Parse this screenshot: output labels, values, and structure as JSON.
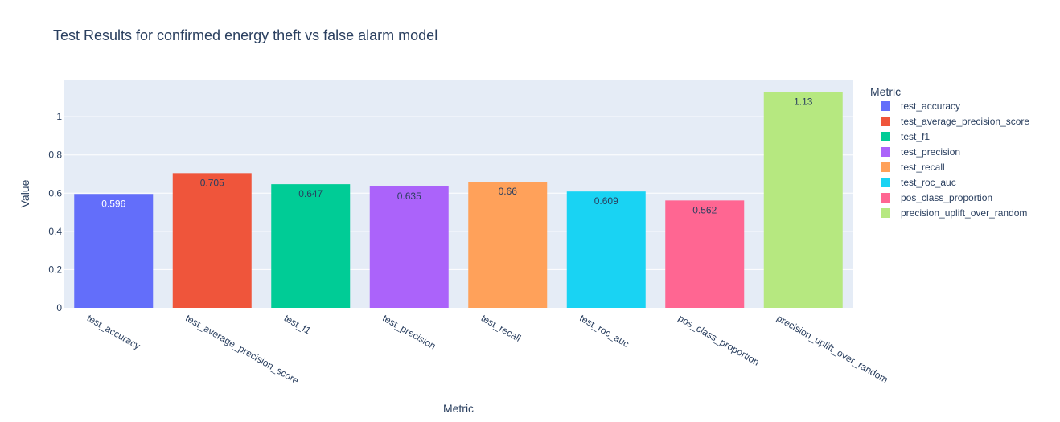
{
  "chart_data": {
    "type": "bar",
    "title": "Test Results for confirmed energy theft vs false alarm model",
    "xlabel": "Metric",
    "ylabel": "Value",
    "ylim": [
      0,
      1.19
    ],
    "yticks": [
      0,
      0.2,
      0.4,
      0.6,
      0.8,
      1
    ],
    "ytick_labels": [
      "0",
      "0.2",
      "0.4",
      "0.6",
      "0.8",
      "1"
    ],
    "legend_title": "Metric",
    "legend_position": "right",
    "grid": true,
    "categories": [
      "test_accuracy",
      "test_average_precision_score",
      "test_f1",
      "test_precision",
      "test_recall",
      "test_roc_auc",
      "pos_class_proportion",
      "precision_uplift_over_random"
    ],
    "values": [
      0.596,
      0.705,
      0.647,
      0.635,
      0.66,
      0.609,
      0.562,
      1.13
    ],
    "value_labels": [
      "0.596",
      "0.705",
      "0.647",
      "0.635",
      "0.66",
      "0.609",
      "0.562",
      "1.13"
    ],
    "colors": [
      "#636efa",
      "#EF553B",
      "#00cc96",
      "#ab63fa",
      "#FFA15A",
      "#19d3f3",
      "#FF6692",
      "#B6E880"
    ],
    "label_colors": [
      "#ffffff",
      "#2a3f5f",
      "#2a3f5f",
      "#2a3f5f",
      "#2a3f5f",
      "#2a3f5f",
      "#2a3f5f",
      "#2a3f5f"
    ]
  }
}
